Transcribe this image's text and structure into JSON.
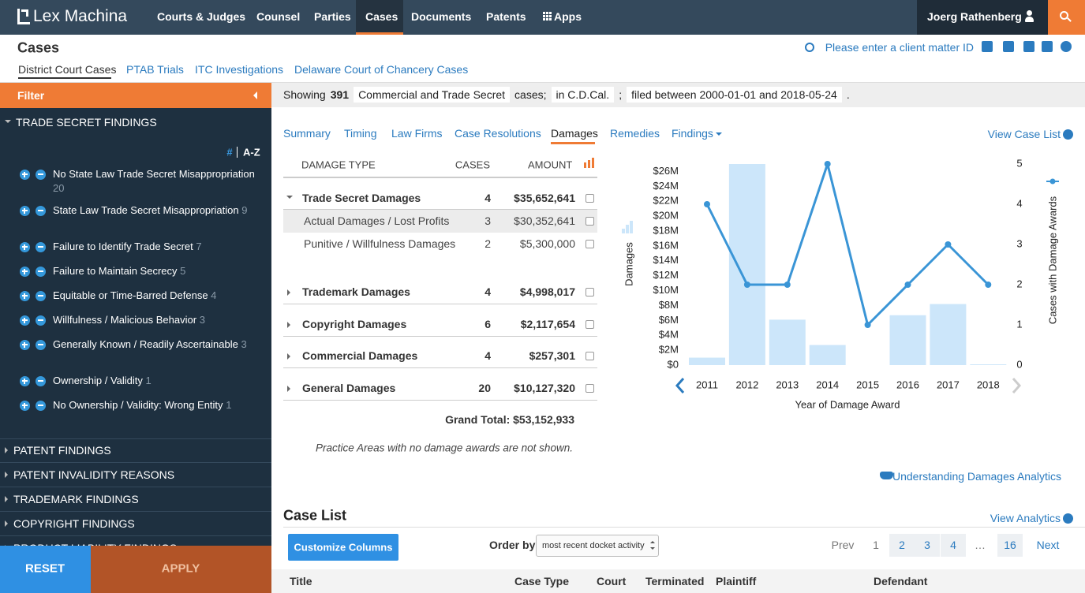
{
  "nav": {
    "logo": "Lex Machina",
    "items": [
      "Courts & Judges",
      "Counsel",
      "Parties",
      "Cases",
      "Documents",
      "Patents",
      "Apps"
    ],
    "user": "Joerg Rathenberg"
  },
  "header": {
    "title": "Cases",
    "tabs": [
      "District Court Cases",
      "PTAB Trials",
      "ITC Investigations",
      "Delaware Court of Chancery Cases"
    ],
    "client_matter": "Please enter a client matter ID"
  },
  "filter": {
    "title": "Filter",
    "open_section": "TRADE SECRET FINDINGS",
    "sort_options": [
      "#",
      "A-Z"
    ],
    "items": [
      {
        "label": "No State Law Trade Secret Misappropriation",
        "count": 20
      },
      {
        "label": "State Law Trade Secret Misappropriation",
        "count": 9
      },
      {
        "label": "Failure to Identify Trade Secret",
        "count": 7
      },
      {
        "label": "Failure to Maintain Secrecy",
        "count": 5
      },
      {
        "label": "Equitable or Time-Barred Defense",
        "count": 4
      },
      {
        "label": "Willfulness / Malicious Behavior",
        "count": 3
      },
      {
        "label": "Generally Known / Readily Ascertainable",
        "count": 3
      },
      {
        "label": "Ownership / Validity",
        "count": 1
      },
      {
        "label": "No Ownership / Validity: Wrong Entity",
        "count": 1
      }
    ],
    "sections": [
      "PATENT FINDINGS",
      "PATENT INVALIDITY REASONS",
      "TRADEMARK FINDINGS",
      "COPYRIGHT FINDINGS",
      "PRODUCT LIABILITY FINDINGS"
    ],
    "reset": "RESET",
    "apply": "APPLY"
  },
  "summary": [
    "Showing",
    391,
    "Commercial and Trade Secret",
    "cases;",
    "in C.D.Cal.",
    ";",
    "filed between 2000-01-01 and 2018-05-24",
    "."
  ],
  "analytics_tabs": [
    "Summary",
    "Timing",
    "Law Firms",
    "Case Resolutions",
    "Damages",
    "Remedies",
    "Findings"
  ],
  "view_case_list": "View Case List",
  "damages_table": {
    "headers": [
      "DAMAGE TYPE",
      "CASES",
      "AMOUNT"
    ],
    "rows": [
      {
        "type": "Trade Secret Damages",
        "cases": 4,
        "amount": "$35,652,641",
        "children": [
          {
            "type": "Actual Damages / Lost Profits",
            "cases": 3,
            "amount": "$30,352,641"
          },
          {
            "type": "Punitive / Willfulness Damages",
            "cases": 2,
            "amount": "$5,300,000"
          }
        ]
      },
      {
        "type": "Trademark Damages",
        "cases": 4,
        "amount": "$4,998,017"
      },
      {
        "type": "Copyright Damages",
        "cases": 6,
        "amount": "$2,117,654"
      },
      {
        "type": "Commercial Damages",
        "cases": 4,
        "amount": "$257,301"
      },
      {
        "type": "General Damages",
        "cases": 20,
        "amount": "$10,127,320"
      }
    ],
    "grand_total": "Grand Total: $53,152,933",
    "note": "Practice Areas with no damage awards are not shown."
  },
  "understanding": "Understanding Damages Analytics",
  "chart_data": {
    "type": "bar",
    "x_label": "Year of Damage Award",
    "y_label": "Damages",
    "y2_label": "Cases with Damage Awards",
    "categories": [
      "2011",
      "2012",
      "2013",
      "2014",
      "2015",
      "2016",
      "2017",
      "2018"
    ],
    "series": [
      {
        "type": "bar",
        "color": "#cce6fa",
        "values": [
          1,
          27,
          6.1,
          2.7,
          0,
          6.7,
          8.2,
          0.1
        ]
      },
      {
        "type": "line",
        "axis": "y2",
        "color": "#3a95d6",
        "values": [
          4,
          2,
          2,
          5,
          1,
          2,
          3,
          2
        ]
      }
    ],
    "ylim": [
      0,
      27
    ],
    "yticks": [
      {
        "value": 0,
        "label": "$0"
      },
      {
        "value": 2,
        "label": "$2M"
      },
      {
        "value": 4,
        "label": "$4M"
      },
      {
        "value": 6,
        "label": "$6M"
      },
      {
        "value": 8,
        "label": "$8M"
      },
      {
        "value": 10,
        "label": "$10M"
      },
      {
        "value": 12,
        "label": "$12M"
      },
      {
        "value": 14,
        "label": "$14M"
      },
      {
        "value": 16,
        "label": "$16M"
      },
      {
        "value": 18,
        "label": "$18M"
      },
      {
        "value": 20,
        "label": "$20M"
      },
      {
        "value": 22,
        "label": "$22M"
      },
      {
        "value": 24,
        "label": "$24M"
      },
      {
        "value": 26,
        "label": "$26M"
      }
    ],
    "y2lim": [
      0,
      5
    ],
    "y2ticks": [
      0,
      1,
      2,
      3,
      4,
      5
    ],
    "grid": false
  },
  "case_list": {
    "title": "Case List",
    "view_analytics": "View Analytics",
    "customize": "Customize Columns",
    "order_by": "Order by",
    "order_value": "most recent docket activity",
    "pagination": [
      "Prev",
      1,
      2,
      3,
      4,
      "…",
      16,
      "Next"
    ],
    "columns": [
      "Title",
      "Case Type",
      "Court",
      "Terminated",
      "Plaintiff",
      "Defendant"
    ]
  }
}
